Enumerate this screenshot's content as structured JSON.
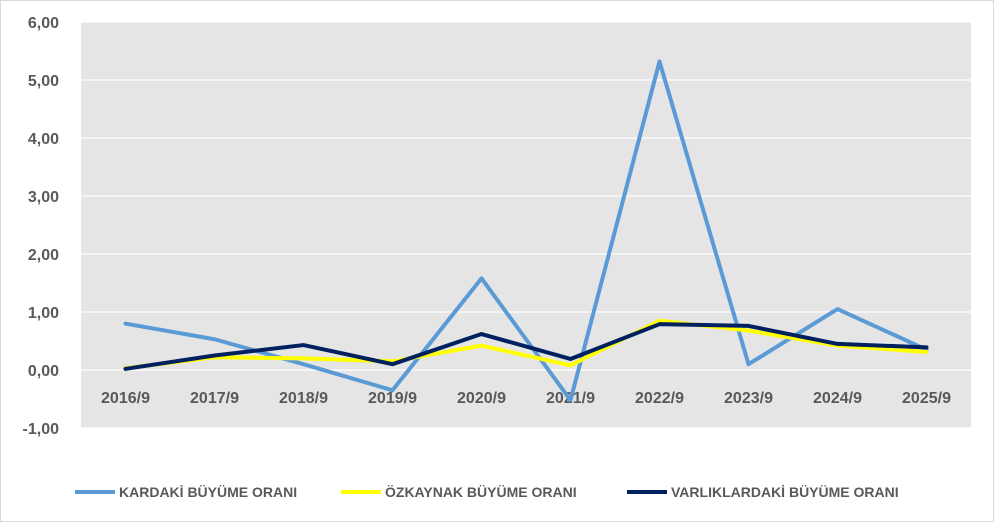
{
  "chart_data": {
    "type": "line",
    "categories": [
      "2016/9",
      "2017/9",
      "2018/9",
      "2019/9",
      "2020/9",
      "2021/9",
      "2022/9",
      "2023/9",
      "2024/9",
      "2025/9"
    ],
    "ylim": [
      -1,
      6
    ],
    "yticks": [
      "-1,00",
      "0,00",
      "1,00",
      "2,00",
      "3,00",
      "4,00",
      "5,00",
      "6,00"
    ],
    "grid": true,
    "legend_position": "bottom",
    "plot_background": "#e5e5e5",
    "series": [
      {
        "name": "KARDAKİ BÜYÜME ORANI",
        "color": "#5b9bd5",
        "values": [
          0.8,
          0.53,
          0.1,
          -0.35,
          1.58,
          -0.52,
          5.32,
          0.1,
          1.05,
          0.35
        ]
      },
      {
        "name": "ÖZKAYNAK BÜYÜME ORANI",
        "color": "#ffff00",
        "values": [
          0.03,
          0.22,
          0.2,
          0.15,
          0.42,
          0.08,
          0.85,
          0.68,
          0.42,
          0.31
        ]
      },
      {
        "name": "VARLIKLARDAKİ BÜYÜME ORANI",
        "color": "#002060",
        "values": [
          0.02,
          0.25,
          0.43,
          0.1,
          0.62,
          0.19,
          0.79,
          0.76,
          0.45,
          0.39
        ]
      }
    ]
  }
}
